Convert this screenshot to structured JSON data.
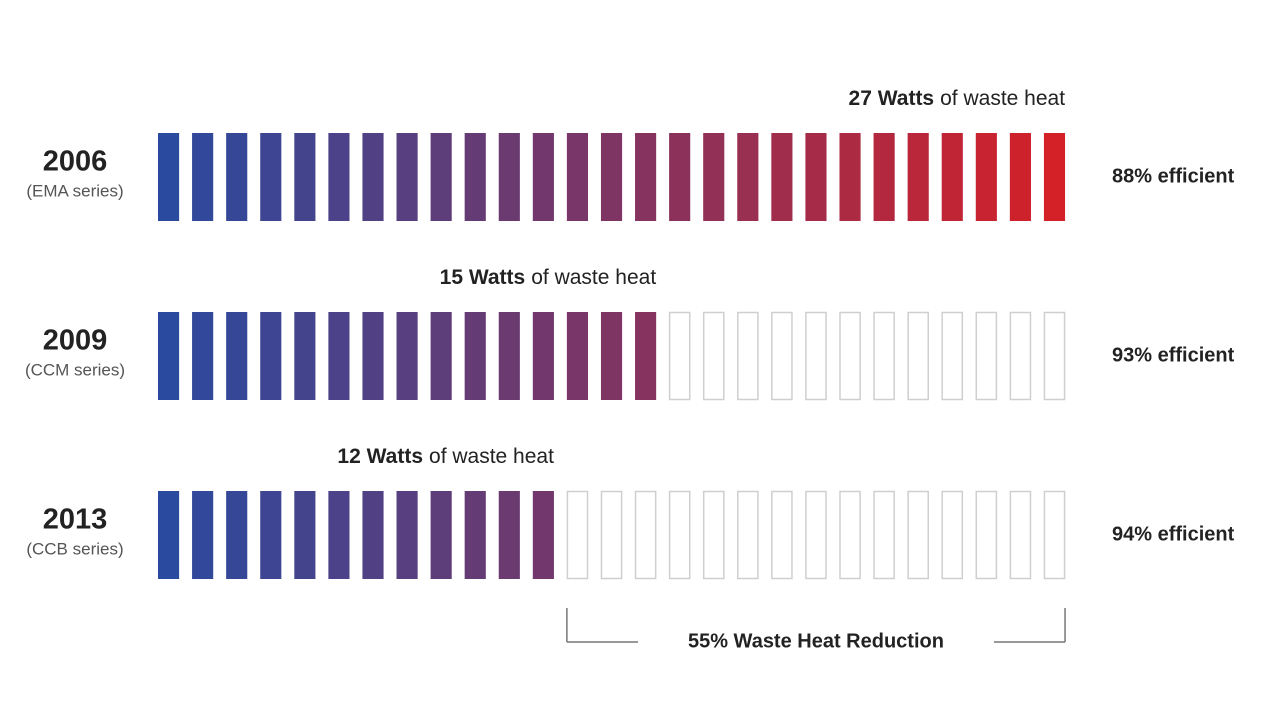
{
  "chart_data": {
    "type": "pictogram",
    "color_start": "#2a4aa0",
    "color_end": "#d42027",
    "empty_color": "#cfcfcf",
    "rows": [
      {
        "year": "2006",
        "series": "(EMA series)",
        "watts": 27,
        "watts_label": "27 Watts",
        "suffix": "of waste heat",
        "efficiency": 88,
        "efficiency_label": "88% efficient"
      },
      {
        "year": "2009",
        "series": "(CCM series)",
        "watts": 15,
        "watts_label": "15 Watts",
        "suffix": "of waste heat",
        "efficiency": 93,
        "efficiency_label": "93% efficient"
      },
      {
        "year": "2013",
        "series": "(CCB series)",
        "watts": 12,
        "watts_label": "12 Watts",
        "suffix": "of waste heat",
        "efficiency": 94,
        "efficiency_label": "94% efficient"
      }
    ],
    "reduction": {
      "value": 55,
      "label": "55% Waste Heat Reduction"
    }
  }
}
